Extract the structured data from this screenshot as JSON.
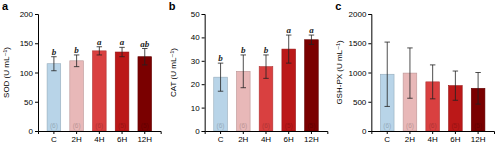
{
  "chart_data": [
    {
      "type": "bar",
      "title": "a",
      "ylabel": "SOD (U mL⁻¹)",
      "ylim": [
        0,
        200
      ],
      "yticks": [
        0,
        50,
        100,
        150,
        200
      ],
      "categories": [
        "C",
        "2H",
        "4H",
        "6H",
        "12H"
      ],
      "values": [
        115,
        120,
        137,
        135,
        127
      ],
      "errors": [
        12,
        10,
        7,
        8,
        14
      ],
      "n_labels": [
        "(6)",
        "(6)",
        "(6)",
        "(5)",
        "(5)"
      ],
      "sig_labels": [
        "b",
        "b",
        "a",
        "a",
        "ab"
      ],
      "colors": [
        "#b8d4e8",
        "#e8b8b8",
        "#d94040",
        "#bb1818",
        "#7a0000"
      ]
    },
    {
      "type": "bar",
      "title": "b",
      "ylabel": "CAT (U mL⁻¹)",
      "ylim": [
        0,
        50
      ],
      "yticks": [
        0,
        10,
        20,
        30,
        40,
        50
      ],
      "categories": [
        "C",
        "2H",
        "4H",
        "6H",
        "12H"
      ],
      "values": [
        23,
        25.5,
        27.5,
        35,
        39
      ],
      "errors": [
        6,
        7,
        5,
        6,
        2
      ],
      "n_labels": [
        "(6)",
        "(6)",
        "(6)",
        "(5)",
        "(5)"
      ],
      "sig_labels": [
        "b",
        "b",
        "b",
        "a",
        "a"
      ],
      "colors": [
        "#b8d4e8",
        "#e8b8b8",
        "#d94040",
        "#bb1818",
        "#7a0000"
      ]
    },
    {
      "type": "bar",
      "title": "c",
      "ylabel": "GSH-PX (U mL⁻¹)",
      "ylim": [
        0,
        2000
      ],
      "yticks": [
        0,
        500,
        1000,
        1500,
        2000
      ],
      "categories": [
        "C",
        "2H",
        "4H",
        "6H",
        "12H"
      ],
      "values": [
        970,
        990,
        840,
        775,
        730
      ],
      "errors": [
        550,
        430,
        290,
        250,
        270
      ],
      "n_labels": [
        "(6)",
        "(6)",
        "(6)",
        "(5)",
        "(5)"
      ],
      "colors": [
        "#b8d4e8",
        "#e8b8b8",
        "#d94040",
        "#bb1818",
        "#7a0000"
      ]
    }
  ]
}
